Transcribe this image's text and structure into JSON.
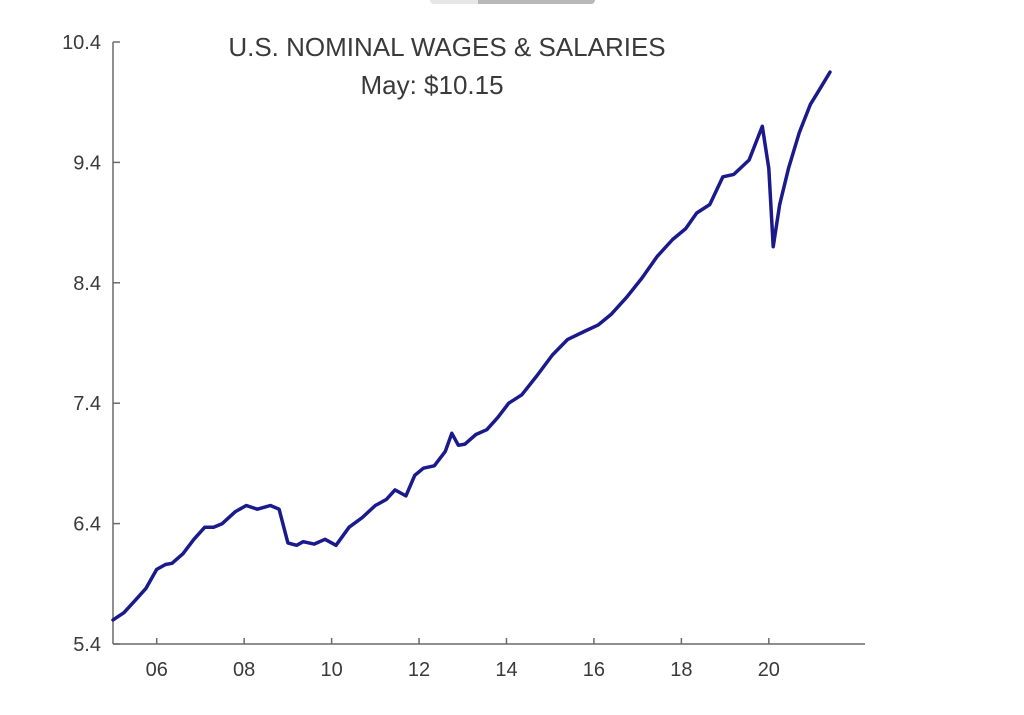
{
  "chart_data": {
    "type": "line",
    "title": "U.S. NOMINAL WAGES & SALARIES",
    "subtitle": "May: $10.15",
    "xlabel": "",
    "ylabel": "",
    "xlim": [
      2005.0,
      2022.2
    ],
    "ylim": [
      5.4,
      10.4
    ],
    "y_ticks": [
      5.4,
      6.4,
      7.4,
      8.4,
      9.4,
      10.4
    ],
    "y_tick_labels": [
      "5.4",
      "6.4",
      "7.4",
      "8.4",
      "9.4",
      "10.4"
    ],
    "x_ticks": [
      2006,
      2008,
      2010,
      2012,
      2014,
      2016,
      2018,
      2020
    ],
    "x_tick_labels": [
      "06",
      "08",
      "10",
      "12",
      "14",
      "16",
      "18",
      "20"
    ],
    "grid": false,
    "legend": "none",
    "line_color": "#1a1a8c",
    "series": [
      {
        "x": [
          2005.0,
          2005.25,
          2005.5,
          2005.75,
          2006.0,
          2006.2,
          2006.35,
          2006.6,
          2006.85,
          2007.1,
          2007.3,
          2007.5,
          2007.8,
          2008.05,
          2008.3,
          2008.6,
          2008.8,
          2009.0,
          2009.2,
          2009.35,
          2009.6,
          2009.85,
          2010.1,
          2010.4,
          2010.7,
          2011.0,
          2011.25,
          2011.45,
          2011.7,
          2011.9,
          2012.1,
          2012.35,
          2012.6,
          2012.75,
          2012.9,
          2013.05,
          2013.3,
          2013.55,
          2013.8,
          2014.05,
          2014.35,
          2014.7,
          2015.05,
          2015.4,
          2015.8,
          2016.1,
          2016.4,
          2016.75,
          2017.1,
          2017.45,
          2017.8,
          2018.1,
          2018.35,
          2018.65,
          2018.95,
          2019.2,
          2019.55,
          2019.85,
          2020.0,
          2020.1,
          2020.25,
          2020.45,
          2020.7,
          2020.95,
          2021.15,
          2021.4
        ],
        "y": [
          5.6,
          5.66,
          5.76,
          5.86,
          6.02,
          6.06,
          6.07,
          6.15,
          6.27,
          6.37,
          6.37,
          6.4,
          6.5,
          6.55,
          6.52,
          6.55,
          6.52,
          6.24,
          6.22,
          6.25,
          6.23,
          6.27,
          6.22,
          6.37,
          6.45,
          6.55,
          6.6,
          6.68,
          6.63,
          6.8,
          6.86,
          6.88,
          7.0,
          7.15,
          7.05,
          7.06,
          7.14,
          7.18,
          7.28,
          7.4,
          7.47,
          7.63,
          7.8,
          7.93,
          8.0,
          8.05,
          8.14,
          8.28,
          8.44,
          8.62,
          8.76,
          8.85,
          8.98,
          9.05,
          9.28,
          9.3,
          9.42,
          9.7,
          9.35,
          8.7,
          9.05,
          9.35,
          9.65,
          9.88,
          10.0,
          10.15
        ]
      }
    ]
  }
}
